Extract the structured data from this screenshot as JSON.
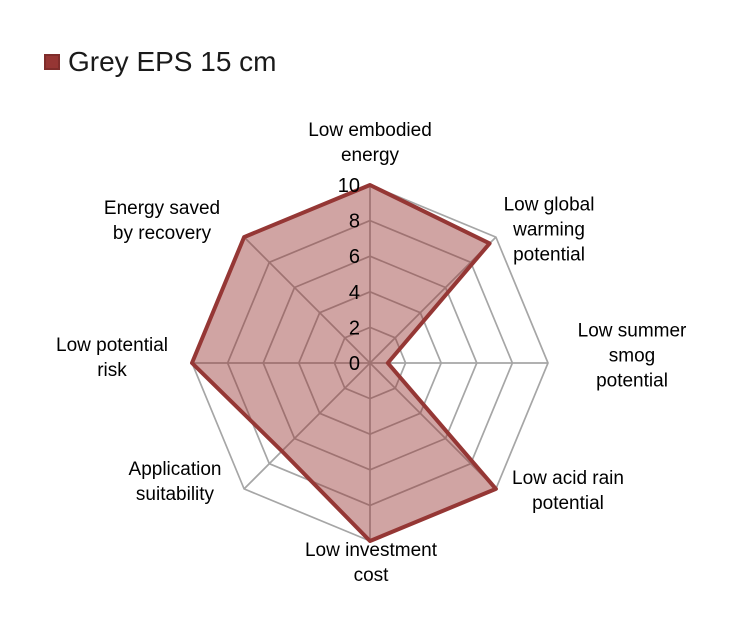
{
  "legend": {
    "label": "Grey EPS 15 cm",
    "marker_color": "#963634",
    "marker_border_color": "#7f2d2b"
  },
  "chart_data": {
    "type": "radar",
    "title": "",
    "categories": [
      "Low embodied energy",
      "Low global warming potential",
      "Low summer smog potential",
      "Low acid rain potential",
      "Low investment cost",
      "Application suitability",
      "Low potential risk",
      "Energy saved by recovery"
    ],
    "series": [
      {
        "name": "Grey EPS 15 cm",
        "values": [
          10,
          9.5,
          1,
          10,
          10,
          7,
          10,
          10
        ]
      }
    ],
    "radial_ticks": [
      0,
      2,
      4,
      6,
      8,
      10
    ],
    "rlim": [
      0,
      10
    ],
    "grid": true,
    "legend_position": "top-left",
    "colors": {
      "fill": "#963634",
      "fill_opacity": 0.45,
      "stroke": "#953735",
      "grid": "#a6a6a6",
      "tick_text": "#000000"
    }
  },
  "axis_labels": {
    "top": "Low embodied\nenergy",
    "top_right": "Low global\nwarming\npotential",
    "right": "Low summer\nsmog potential",
    "bottom_right": "Low acid rain\npotential",
    "bottom": "Low investment\ncost",
    "bottom_left": "Application\nsuitability",
    "left": "Low potential\nrisk",
    "top_left": "Energy saved\nby recovery"
  }
}
